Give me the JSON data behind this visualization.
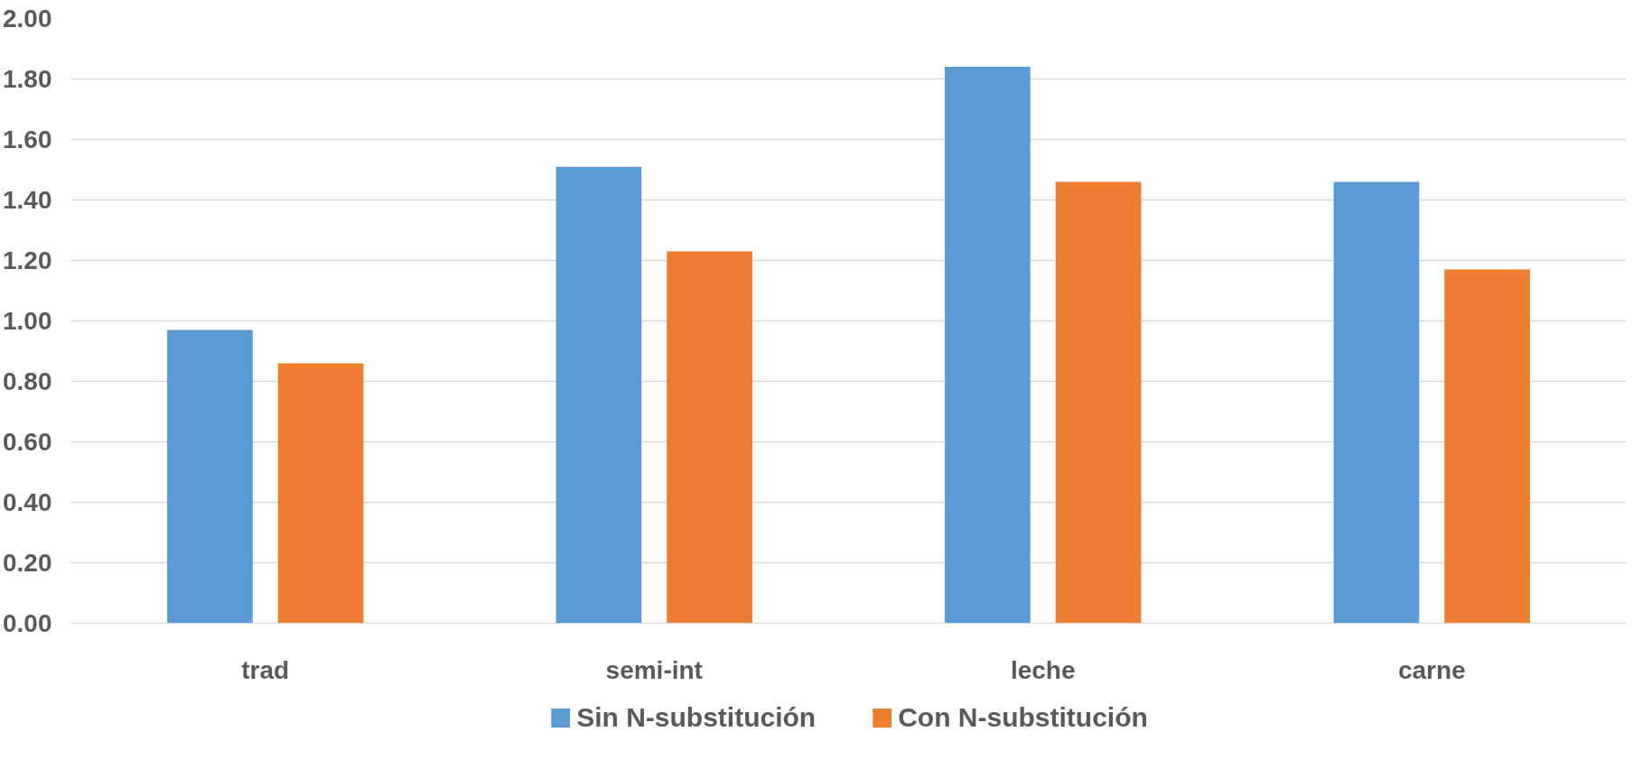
{
  "chart_data": {
    "type": "bar",
    "categories": [
      "trad",
      "semi-int",
      "leche",
      "carne"
    ],
    "series": [
      {
        "name": "Sin N-substitución",
        "color": "#5b9bd5",
        "values": [
          0.97,
          1.51,
          1.84,
          1.46
        ]
      },
      {
        "name": "Con N-substitución",
        "color": "#ed7d31",
        "values": [
          0.86,
          1.23,
          1.46,
          1.17
        ]
      }
    ],
    "ylim": [
      0,
      2
    ],
    "yticks": [
      {
        "value": 0,
        "label": "0.00"
      },
      {
        "value": 0.2,
        "label": "0.20"
      },
      {
        "value": 0.4,
        "label": "0.40"
      },
      {
        "value": 0.6,
        "label": "0.60"
      },
      {
        "value": 0.8,
        "label": "0.80"
      },
      {
        "value": 1,
        "label": "1.00"
      },
      {
        "value": 1.2,
        "label": "1.20"
      },
      {
        "value": 1.4,
        "label": "1.40"
      },
      {
        "value": 1.6,
        "label": "1.60"
      },
      {
        "value": 1.8,
        "label": "1.80"
      },
      {
        "value": 2,
        "label": "2.00"
      }
    ],
    "grid": "y",
    "legend": "bottom"
  }
}
